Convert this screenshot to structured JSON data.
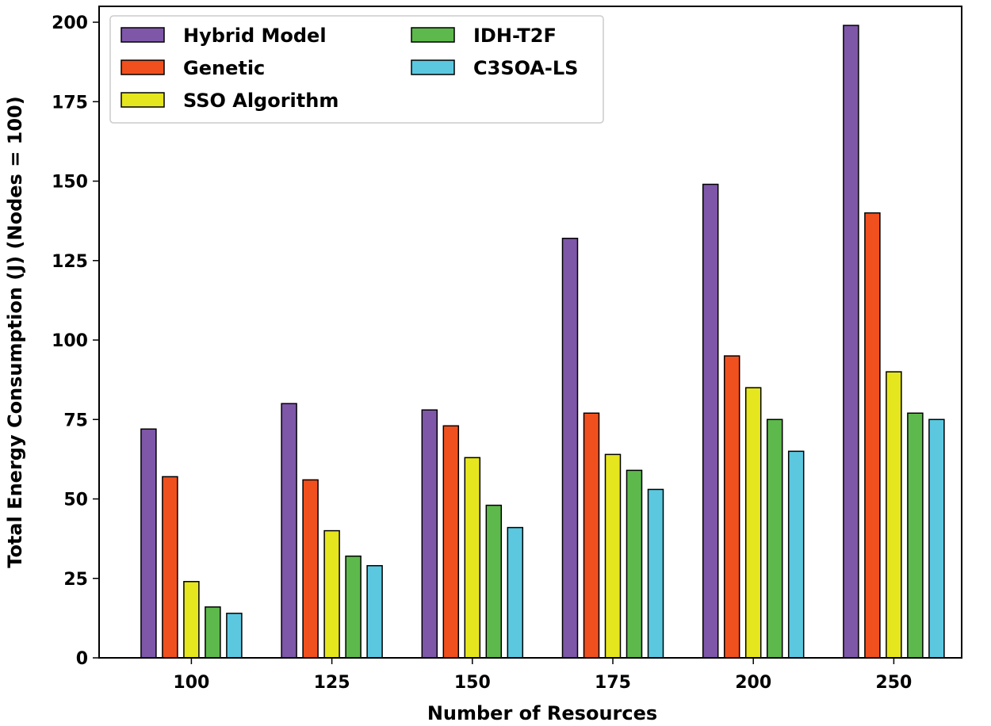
{
  "chart_data": {
    "type": "bar",
    "xlabel": "Number of Resources",
    "ylabel": "Total Energy Consumption (J) (Nodes = 100)",
    "categories": [
      "100",
      "125",
      "150",
      "175",
      "200",
      "250"
    ],
    "ylim": [
      0,
      205
    ],
    "yticks": [
      0,
      25,
      50,
      75,
      100,
      125,
      150,
      175,
      200
    ],
    "grid": false,
    "legend_position": "top-left",
    "series": [
      {
        "name": "Hybrid Model",
        "color": "#7E57A8",
        "values": [
          72,
          80,
          78,
          132,
          149,
          199
        ]
      },
      {
        "name": "Genetic",
        "color": "#F0501E",
        "values": [
          57,
          56,
          73,
          77,
          95,
          140
        ]
      },
      {
        "name": "SSO Algorithm",
        "color": "#E6E61E",
        "values": [
          24,
          40,
          63,
          64,
          85,
          90
        ]
      },
      {
        "name": "IDH-T2F",
        "color": "#5DB94B",
        "values": [
          16,
          32,
          48,
          59,
          75,
          77
        ]
      },
      {
        "name": "C3SOA-LS",
        "color": "#5BC8E0",
        "values": [
          14,
          29,
          41,
          53,
          65,
          75
        ]
      }
    ]
  }
}
